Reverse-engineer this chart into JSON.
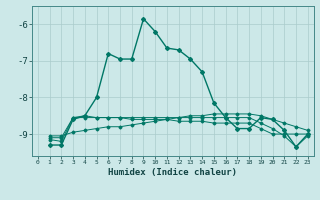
{
  "xlabel": "Humidex (Indice chaleur)",
  "background_color": "#cce8e8",
  "grid_color": "#aacccc",
  "line_color": "#007766",
  "xlim": [
    -0.5,
    23.5
  ],
  "ylim": [
    -9.6,
    -5.5
  ],
  "yticks": [
    -9,
    -8,
    -7,
    -6
  ],
  "xticks": [
    0,
    1,
    2,
    3,
    4,
    5,
    6,
    7,
    8,
    9,
    10,
    11,
    12,
    13,
    14,
    15,
    16,
    17,
    18,
    19,
    20,
    21,
    22,
    23
  ],
  "series": [
    [
      null,
      -9.3,
      -9.3,
      -8.6,
      -8.5,
      -8.0,
      -6.8,
      -6.95,
      -6.95,
      -5.85,
      -6.2,
      -6.65,
      -6.7,
      -6.95,
      -7.3,
      -8.15,
      -8.55,
      -8.85,
      -8.85,
      -8.55,
      -8.6,
      -8.9,
      -9.35,
      -9.0
    ],
    [
      null,
      -9.1,
      -9.1,
      -8.55,
      -8.5,
      -8.55,
      -8.55,
      -8.55,
      -8.6,
      -8.6,
      -8.6,
      -8.6,
      -8.65,
      -8.65,
      -8.65,
      -8.7,
      -8.7,
      -8.7,
      -8.7,
      -8.85,
      -9.0,
      -9.0,
      -9.0,
      -9.0
    ],
    [
      null,
      -9.05,
      -9.05,
      -8.95,
      -8.9,
      -8.85,
      -8.8,
      -8.8,
      -8.75,
      -8.7,
      -8.65,
      -8.6,
      -8.55,
      -8.5,
      -8.5,
      -8.45,
      -8.45,
      -8.45,
      -8.45,
      -8.5,
      -8.6,
      -8.7,
      -8.8,
      -8.9
    ],
    [
      null,
      -9.15,
      -9.2,
      -8.55,
      -8.55,
      -8.55,
      -8.55,
      -8.55,
      -8.55,
      -8.55,
      -8.55,
      -8.55,
      -8.55,
      -8.55,
      -8.55,
      -8.55,
      -8.55,
      -8.55,
      -8.55,
      -8.7,
      -8.85,
      -9.05,
      -9.35,
      -9.05
    ]
  ]
}
